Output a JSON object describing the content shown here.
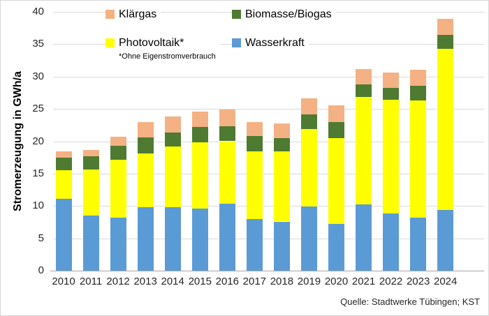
{
  "chart_data": {
    "type": "bar",
    "stacked": true,
    "title": "",
    "ylabel": "Stromerzeugung in GWh/a",
    "xlabel": "",
    "ylim": [
      0,
      40
    ],
    "yticks": [
      0,
      5,
      10,
      15,
      20,
      25,
      30,
      35,
      40
    ],
    "grid": true,
    "legend_position": "top",
    "legend_note": "*Ohne Eigenstromverbrauch",
    "legend_note_for": "Photovoltaik*",
    "legend_order": [
      "Klärgas",
      "Biomasse/Biogas",
      "Photovoltaik*",
      "Wasserkraft"
    ],
    "categories": [
      "2010",
      "2011",
      "2012",
      "2013",
      "2014",
      "2015",
      "2016",
      "2017",
      "2018",
      "2019",
      "2020",
      "2021",
      "2022",
      "2023",
      "2024"
    ],
    "series": [
      {
        "name": "Wasserkraft",
        "color": "#5B9BD5",
        "values": [
          11.1,
          8.5,
          8.2,
          9.8,
          9.8,
          9.6,
          10.3,
          8.0,
          7.6,
          9.9,
          7.2,
          10.2,
          8.8,
          8.2,
          9.4
        ]
      },
      {
        "name": "Photovoltaik*",
        "color": "#FFFF00",
        "values": [
          4.4,
          7.1,
          8.9,
          8.3,
          9.4,
          10.2,
          9.7,
          10.4,
          10.8,
          12.0,
          13.3,
          16.6,
          17.6,
          18.1,
          24.9
        ]
      },
      {
        "name": "Biomasse/Biogas",
        "color": "#4E7B31",
        "values": [
          2.0,
          2.1,
          2.2,
          2.5,
          2.1,
          2.4,
          2.3,
          2.4,
          2.1,
          2.3,
          2.5,
          2.0,
          1.8,
          2.3,
          2.1
        ]
      },
      {
        "name": "Klärgas",
        "color": "#F4B183",
        "values": [
          0.9,
          0.9,
          1.4,
          2.4,
          2.5,
          2.4,
          2.6,
          2.2,
          2.2,
          2.4,
          2.5,
          2.4,
          2.4,
          2.5,
          2.5
        ]
      }
    ]
  },
  "footer": {
    "source": "Quelle: Stadtwerke Tübingen; KST"
  },
  "colors": {
    "gridline": "#D9D9D9",
    "axis": "#A6A6A6",
    "text": "#262626"
  }
}
